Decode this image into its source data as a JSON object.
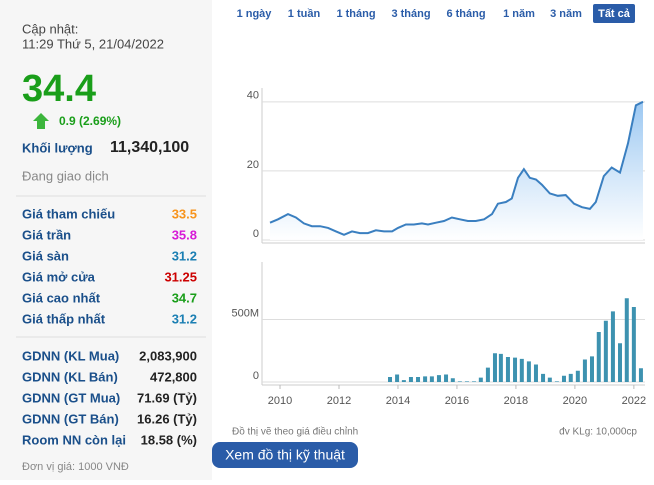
{
  "sidebar": {
    "updated_label": "Cập nhật:",
    "updated_time": "11:29 Thứ 5, 21/04/2022",
    "price": "34.4",
    "change": "0.9 (2.69%)",
    "volume_label": "Khối lượng",
    "volume": "11,340,100",
    "status": "Đang giao dịch",
    "prices": [
      {
        "label": "Giá tham chiếu",
        "value": "33.5",
        "color": "#f7941d"
      },
      {
        "label": "Giá trần",
        "value": "35.8",
        "color": "#d61ad6"
      },
      {
        "label": "Giá sàn",
        "value": "31.2",
        "color": "#1b7fb3"
      },
      {
        "label": "Giá mở cửa",
        "value": "31.25",
        "color": "#cc0000"
      },
      {
        "label": "Giá cao nhất",
        "value": "34.7",
        "color": "#1a9e1a"
      },
      {
        "label": "Giá thấp nhất",
        "value": "31.2",
        "color": "#1b7fb3"
      }
    ],
    "foreign": [
      {
        "label": "GDNN (KL Mua)",
        "value": "2,083,900"
      },
      {
        "label": "GDNN (KL Bán)",
        "value": "472,800"
      },
      {
        "label": "GDNN (GT Mua)",
        "value": "71.69 (Tỷ)"
      },
      {
        "label": "GDNN (GT Bán)",
        "value": "16.26 (Tỷ)"
      },
      {
        "label": "Room NN còn lại",
        "value": "18.58 (%)"
      }
    ],
    "unit_note": "Đơn vị giá: 1000 VNĐ"
  },
  "tabs": [
    "1 ngày",
    "1 tuần",
    "1 tháng",
    "3 tháng",
    "6 tháng",
    "1 năm",
    "3 năm",
    "Tất cả"
  ],
  "active_tab": 7,
  "notes": {
    "left": "Đồ thị vẽ theo giá điều chỉnh",
    "right": "đv KLg: 10,000cp"
  },
  "button": "Xem đồ thị kỹ thuật",
  "chart_data": [
    {
      "type": "line",
      "color": "#3a7fc0",
      "grid": true,
      "x": [
        2009.66,
        2009.93,
        2010.27,
        2010.54,
        2010.81,
        2011.08,
        2011.36,
        2011.63,
        2011.9,
        2012.17,
        2012.44,
        2012.71,
        2012.98,
        2013.25,
        2013.53,
        2013.8,
        2014.0,
        2014.27,
        2014.54,
        2014.81,
        2015.02,
        2015.29,
        2015.56,
        2015.83,
        2016.1,
        2016.37,
        2016.64,
        2016.92,
        2017.19,
        2017.39,
        2017.66,
        2017.86,
        2018.07,
        2018.27,
        2018.47,
        2018.68,
        2018.88,
        2019.15,
        2019.42,
        2019.69,
        2019.97,
        2020.24,
        2020.51,
        2020.71,
        2020.98,
        2021.25,
        2021.53,
        2021.8,
        2022.07,
        2022.31
      ],
      "values": [
        5,
        6,
        7.5,
        6.5,
        4.8,
        4,
        4,
        3.5,
        2.5,
        1.5,
        2.5,
        2,
        2,
        2.8,
        2.5,
        2.5,
        3.5,
        4.5,
        4.5,
        4.8,
        4.5,
        5,
        5.5,
        6.5,
        6,
        5.5,
        5.5,
        6,
        7.5,
        10.5,
        11,
        12,
        18,
        20.5,
        18,
        17.5,
        16,
        13.5,
        12.8,
        13,
        10.5,
        9.5,
        9,
        11,
        18.5,
        21,
        19.5,
        28,
        39,
        40
      ],
      "xlim": [
        2009.66,
        2022.31
      ],
      "ylim": [
        0,
        44
      ],
      "yticks": [
        0,
        20,
        40
      ]
    },
    {
      "type": "bar",
      "color": "#3d92b0",
      "grid": true,
      "x": [
        2013.73,
        2013.97,
        2014.2,
        2014.44,
        2014.68,
        2014.92,
        2015.15,
        2015.39,
        2015.63,
        2015.86,
        2016.1,
        2016.34,
        2016.58,
        2016.81,
        2017.05,
        2017.29,
        2017.49,
        2017.73,
        2017.97,
        2018.2,
        2018.44,
        2018.68,
        2018.92,
        2019.15,
        2019.39,
        2019.63,
        2019.86,
        2020.1,
        2020.34,
        2020.58,
        2020.81,
        2021.05,
        2021.29,
        2021.53,
        2021.76,
        2022.0,
        2022.24
      ],
      "values": [
        40,
        60,
        15,
        40,
        40,
        45,
        45,
        55,
        60,
        30,
        5,
        5,
        5,
        35,
        115,
        230,
        225,
        200,
        195,
        185,
        165,
        140,
        65,
        35,
        5,
        50,
        65,
        90,
        180,
        205,
        400,
        490,
        565,
        310,
        670,
        600,
        110
      ],
      "xlim": [
        2009.66,
        2022.31
      ],
      "xticks": [
        2010,
        2012,
        2014,
        2016,
        2018,
        2020,
        2022
      ],
      "ylim": [
        0,
        960
      ],
      "yticks": [
        0,
        {
          "value": 500,
          "label": "500M"
        }
      ]
    }
  ]
}
